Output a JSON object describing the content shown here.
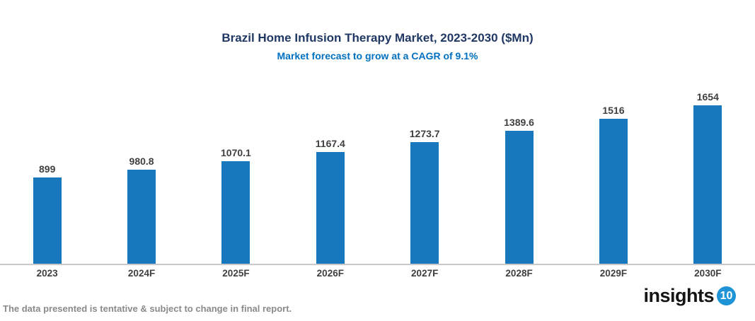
{
  "header": {
    "title": "Brazil Home Infusion Therapy Market, 2023-2030 ($Mn)",
    "subtitle": "Market forecast to grow at a CAGR of 9.1%"
  },
  "chart_data": {
    "type": "bar",
    "title": "Brazil Home Infusion Therapy Market, 2023-2030 ($Mn)",
    "subtitle": "Market forecast to grow at a CAGR of 9.1%",
    "categories": [
      "2023",
      "2024F",
      "2025F",
      "2026F",
      "2027F",
      "2028F",
      "2029F",
      "2030F"
    ],
    "values": [
      899,
      980.8,
      1070.1,
      1167.4,
      1273.7,
      1389.6,
      1516,
      1654
    ],
    "value_labels": [
      "899",
      "980.8",
      "1070.1",
      "1167.4",
      "1273.7",
      "1389.6",
      "1516",
      "1654"
    ],
    "xlabel": "",
    "ylabel": "",
    "ylim": [
      0,
      1700
    ],
    "grid": false,
    "legend": false,
    "y_axis_visible": false,
    "data_labels_position": "above-bar",
    "bar_color": "#1878BE"
  },
  "footer": {
    "note": "The data presented is tentative & subject to change in final report.",
    "logo": {
      "text": "insights",
      "badge": "10",
      "badge_color": "#1E93D6"
    }
  },
  "colors": {
    "title": "#1F3864",
    "subtitle": "#0070C0",
    "bar": "#1878BE",
    "data_label": "#404040",
    "x_label": "#3F3F3F",
    "axis_line": "#C9C9C9",
    "note": "#8A8A8A"
  }
}
